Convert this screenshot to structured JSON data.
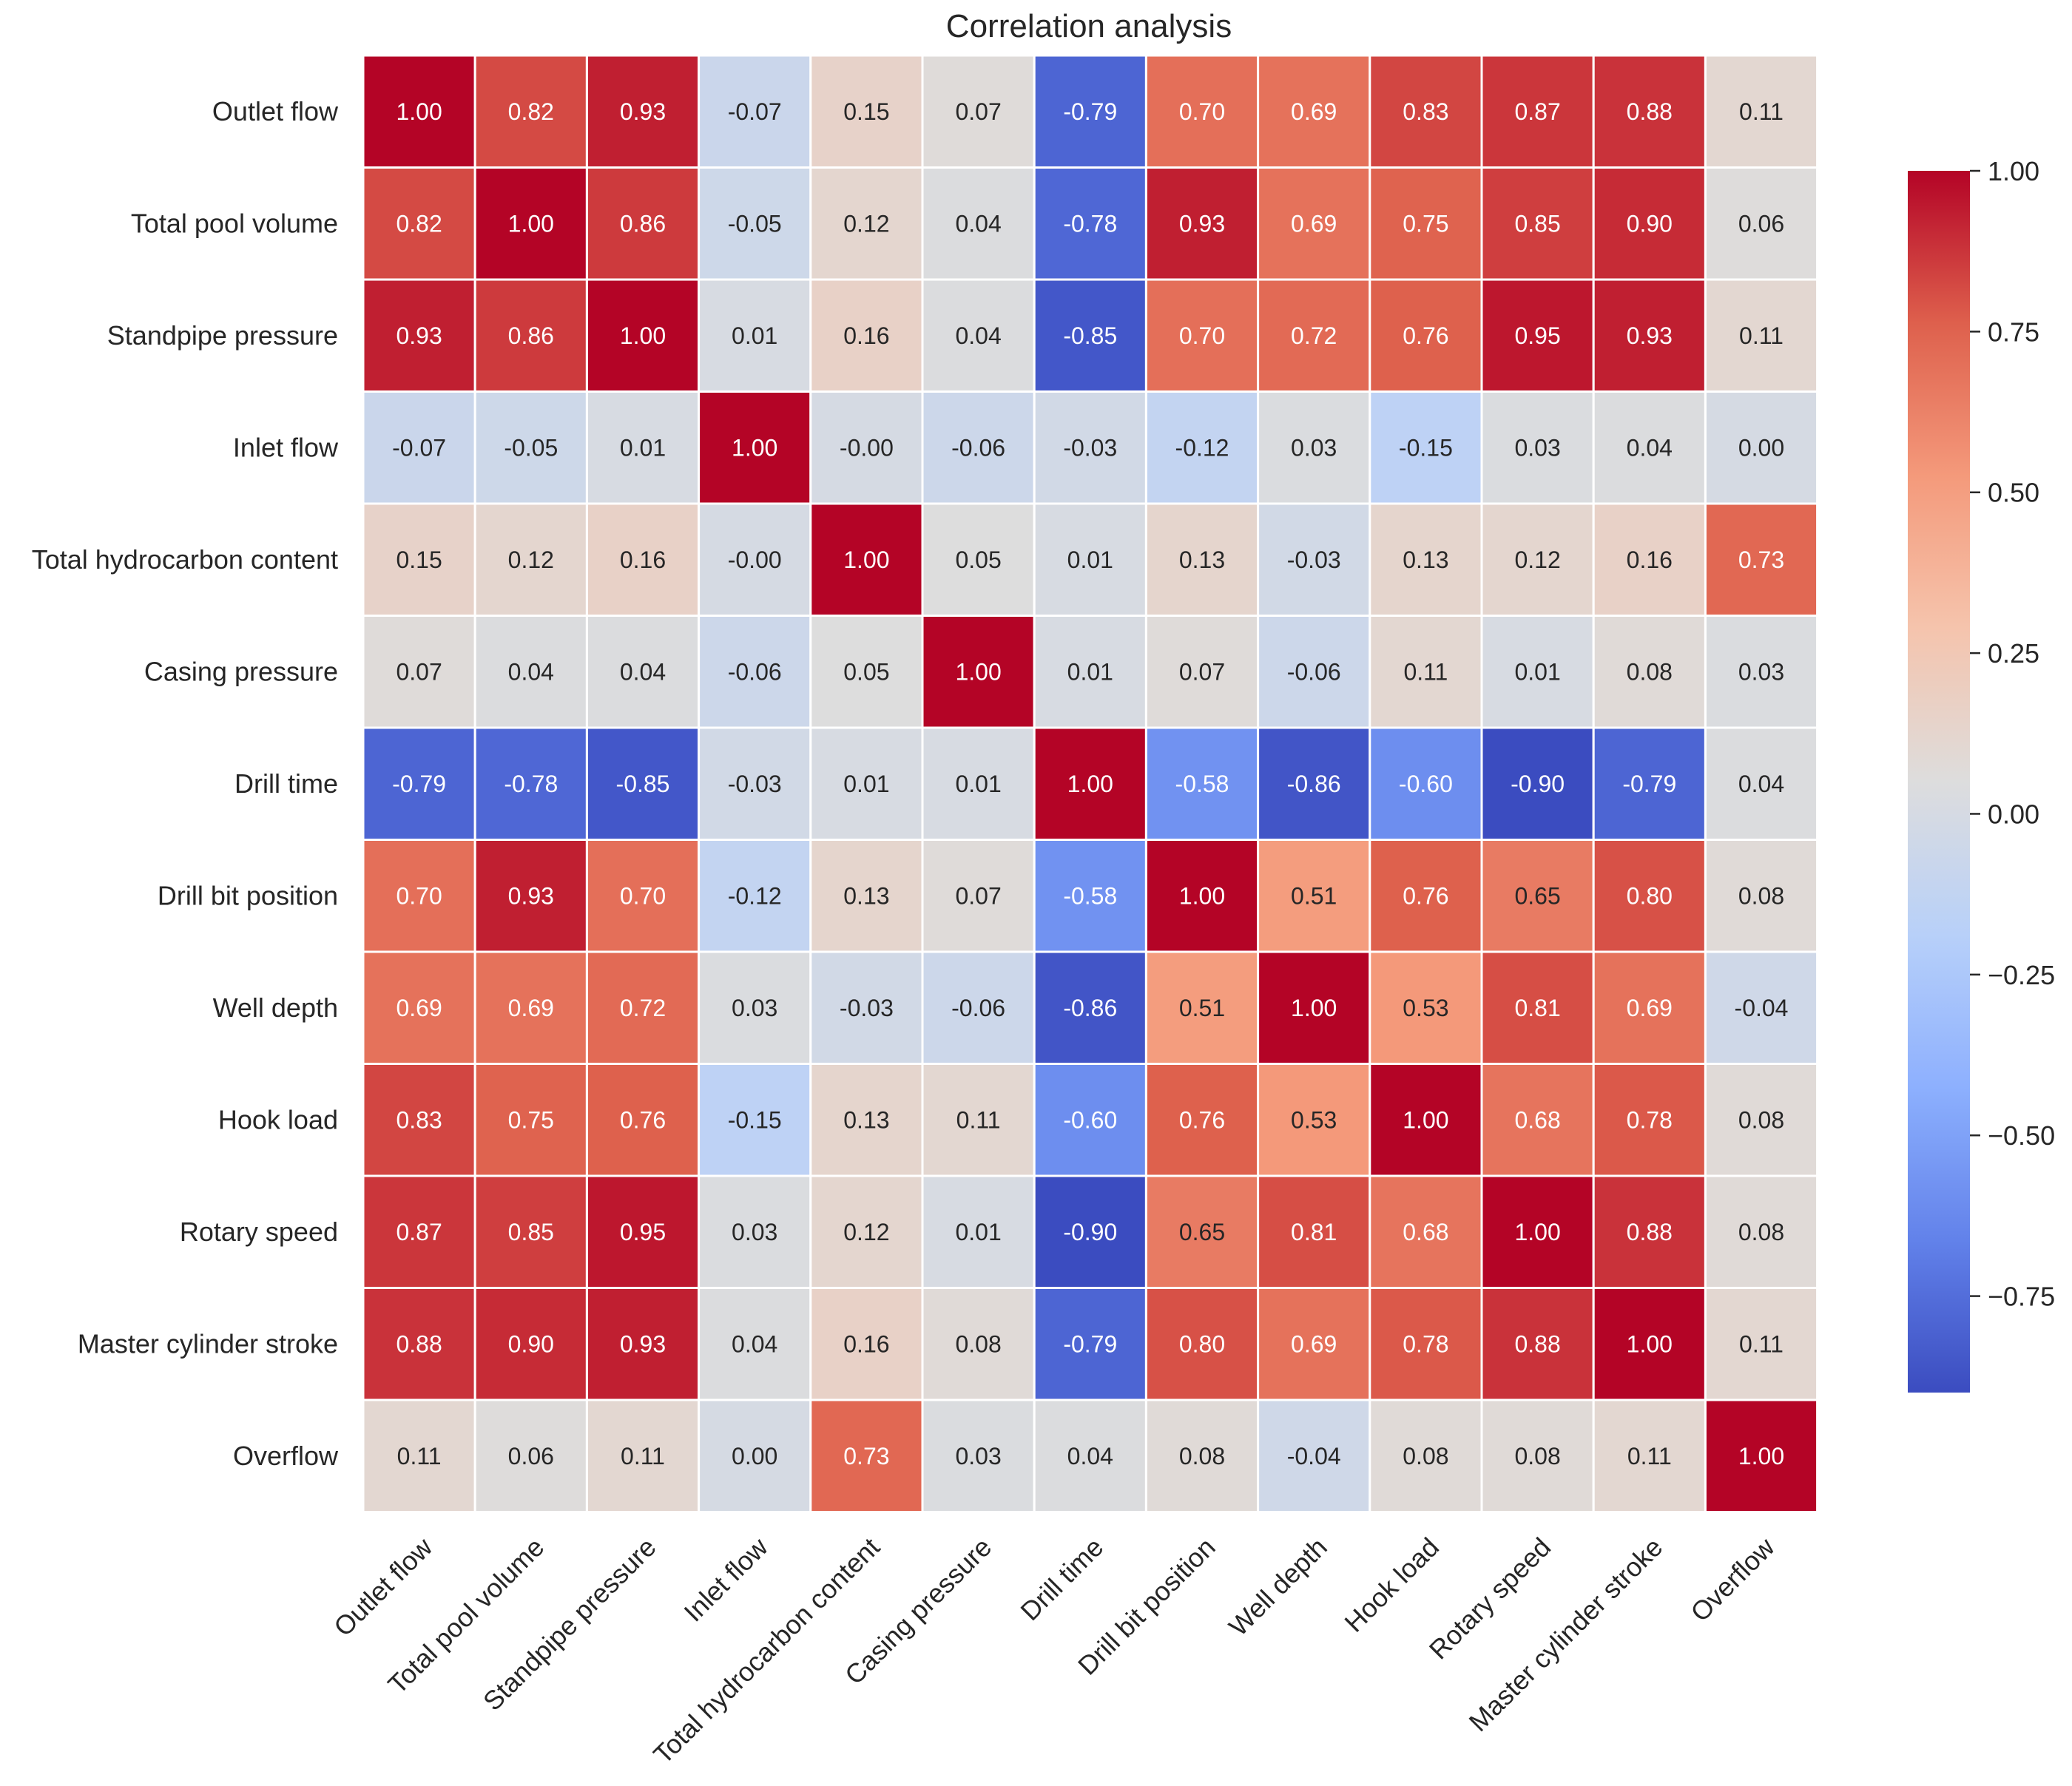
{
  "chart_data": {
    "type": "heatmap",
    "title": "Correlation analysis",
    "xlabel": "",
    "ylabel": "",
    "colormap": "coolwarm",
    "vmin": -0.9,
    "vmax": 1.0,
    "variables": [
      "Outlet flow",
      "Total pool volume",
      "Standpipe pressure",
      "Inlet flow",
      "Total hydrocarbon content",
      "Casing pressure",
      "Drill time",
      "Drill bit position",
      "Well depth",
      "Hook load",
      "Rotary speed",
      "Master cylinder stroke",
      "Overflow"
    ],
    "matrix": [
      [
        1.0,
        0.82,
        0.93,
        -0.07,
        0.15,
        0.07,
        -0.79,
        0.7,
        0.69,
        0.83,
        0.87,
        0.88,
        0.11
      ],
      [
        0.82,
        1.0,
        0.86,
        -0.05,
        0.12,
        0.04,
        -0.78,
        0.93,
        0.69,
        0.75,
        0.85,
        0.9,
        0.06
      ],
      [
        0.93,
        0.86,
        1.0,
        0.01,
        0.16,
        0.04,
        -0.85,
        0.7,
        0.72,
        0.76,
        0.95,
        0.93,
        0.11
      ],
      [
        -0.07,
        -0.05,
        0.01,
        1.0,
        -0.0,
        -0.06,
        -0.03,
        -0.12,
        0.03,
        -0.15,
        0.03,
        0.04,
        0.0
      ],
      [
        0.15,
        0.12,
        0.16,
        -0.0,
        1.0,
        0.05,
        0.01,
        0.13,
        -0.03,
        0.13,
        0.12,
        0.16,
        0.73
      ],
      [
        0.07,
        0.04,
        0.04,
        -0.06,
        0.05,
        1.0,
        0.01,
        0.07,
        -0.06,
        0.11,
        0.01,
        0.08,
        0.03
      ],
      [
        -0.79,
        -0.78,
        -0.85,
        -0.03,
        0.01,
        0.01,
        1.0,
        -0.58,
        -0.86,
        -0.6,
        -0.9,
        -0.79,
        0.04
      ],
      [
        0.7,
        0.93,
        0.7,
        -0.12,
        0.13,
        0.07,
        -0.58,
        1.0,
        0.51,
        0.76,
        0.65,
        0.8,
        0.08
      ],
      [
        0.69,
        0.69,
        0.72,
        0.03,
        -0.03,
        -0.06,
        -0.86,
        0.51,
        1.0,
        0.53,
        0.81,
        0.69,
        -0.04
      ],
      [
        0.83,
        0.75,
        0.76,
        -0.15,
        0.13,
        0.11,
        -0.6,
        0.76,
        0.53,
        1.0,
        0.68,
        0.78,
        0.08
      ],
      [
        0.87,
        0.85,
        0.95,
        0.03,
        0.12,
        0.01,
        -0.9,
        0.65,
        0.81,
        0.68,
        1.0,
        0.88,
        0.08
      ],
      [
        0.88,
        0.9,
        0.93,
        0.04,
        0.16,
        0.08,
        -0.79,
        0.8,
        0.69,
        0.78,
        0.88,
        1.0,
        0.11
      ],
      [
        0.11,
        0.06,
        0.11,
        0.0,
        0.73,
        0.03,
        0.04,
        0.08,
        -0.04,
        0.08,
        0.08,
        0.11,
        1.0
      ]
    ],
    "colorbar_ticks": [
      1.0,
      0.75,
      0.5,
      0.25,
      0.0,
      -0.25,
      -0.5,
      -0.75
    ],
    "colorbar_tick_labels": [
      "1.00",
      "0.75",
      "0.50",
      "0.25",
      "0.00",
      "−0.25",
      "−0.50",
      "−0.75"
    ],
    "annotations_format": "0.00"
  }
}
